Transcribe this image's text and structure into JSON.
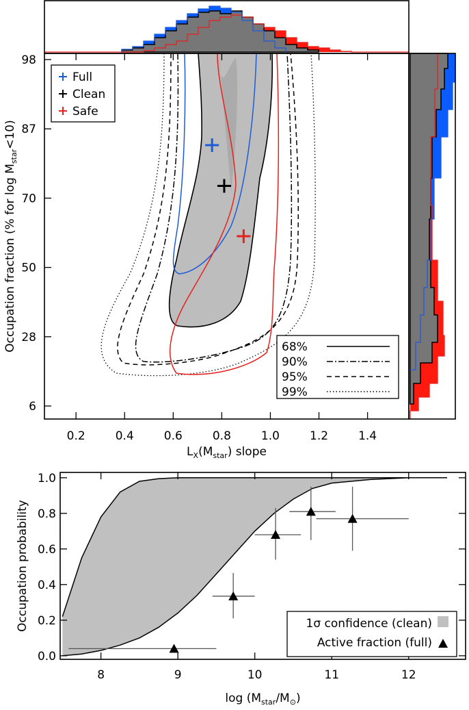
{
  "chart_data": [
    {
      "type": "scatter",
      "xlabel": [
        {
          "text": "L"
        },
        {
          "text": "X",
          "sub": true
        },
        {
          "text": "(M"
        },
        {
          "text": "star",
          "sub": true
        },
        {
          "text": ") slope"
        }
      ],
      "ylabel": [
        {
          "text": "Occupation fraction (% for log M"
        },
        {
          "text": "star",
          "sub": true
        },
        {
          "text": "<10)"
        }
      ],
      "xlim": [
        0.07,
        1.57
      ],
      "xticks": [
        0.2,
        0.4,
        0.6,
        0.8,
        {
          "value": 1,
          "label": "1.0"
        },
        1.2,
        1.4
      ],
      "yticks": [
        98,
        87,
        70,
        50,
        28,
        6
      ],
      "legend": "upper left",
      "series": [
        {
          "name": "Full",
          "color": "#1e5bd8",
          "x": [
            0.76
          ],
          "values": [
            83
          ]
        },
        {
          "name": "Clean",
          "color": "#000000",
          "x": [
            0.81
          ],
          "values": [
            73
          ]
        },
        {
          "name": "Safe",
          "color": "#e8201c",
          "x": [
            0.89
          ],
          "values": [
            59
          ]
        }
      ],
      "contour_legend": [
        {
          "label": "68%",
          "style": "solid"
        },
        {
          "label": "90%",
          "style": "dashdot"
        },
        {
          "label": "95%",
          "style": "dashed"
        },
        {
          "label": "99%",
          "style": "dotted"
        }
      ]
    },
    {
      "type": "errorbar",
      "xlabel": [
        {
          "text": "log (M"
        },
        {
          "text": "star",
          "sub": true
        },
        {
          "text": "/M"
        },
        {
          "text": "⊙",
          "sub": true
        },
        {
          "text": ")"
        }
      ],
      "ylabel": [
        {
          "text": "Occupation probability"
        }
      ],
      "xlim": [
        7.47,
        12.74
      ],
      "ylim": [
        -0.02,
        1.03
      ],
      "xticks": [
        8,
        9,
        10,
        11,
        12
      ],
      "yticks": [
        {
          "value": 0,
          "label": "0.0"
        },
        0.2,
        0.4,
        0.6,
        0.8,
        {
          "value": 1,
          "label": "1.0"
        }
      ],
      "legend": "lower right",
      "band": {
        "name": "1σ confidence (clean)",
        "color": "#c0c0c0",
        "x": [
          7.5,
          7.75,
          8,
          8.25,
          8.5,
          8.75,
          9,
          9.25,
          9.5,
          9.75,
          10,
          10.25,
          10.5,
          10.75,
          11,
          11.5,
          12,
          12.5
        ],
        "lower": [
          0.0,
          0.01,
          0.03,
          0.06,
          0.1,
          0.16,
          0.24,
          0.34,
          0.46,
          0.58,
          0.7,
          0.8,
          0.88,
          0.94,
          0.97,
          0.99,
          1.0,
          1.0
        ],
        "upper": [
          0.22,
          0.55,
          0.78,
          0.92,
          0.98,
          0.995,
          1.0,
          1.0,
          1.0,
          1.0,
          1.0,
          1.0,
          1.0,
          1.0,
          1.0,
          1.0,
          1.0,
          1.0
        ]
      },
      "series": [
        {
          "name": "Active fraction (full)",
          "color": "#000000",
          "x": [
            8.95,
            9.72,
            10.27,
            10.73,
            11.27
          ],
          "values": [
            0.04,
            0.335,
            0.68,
            0.81,
            0.77
          ],
          "x_low": [
            7.58,
            9.45,
            10.0,
            10.45,
            10.8
          ],
          "x_high": [
            9.5,
            10.0,
            10.6,
            11.05,
            12.0
          ],
          "y_low": [
            null,
            0.21,
            0.54,
            0.65,
            0.59
          ],
          "y_high": [
            null,
            0.465,
            0.83,
            0.95,
            0.95
          ]
        }
      ]
    }
  ]
}
